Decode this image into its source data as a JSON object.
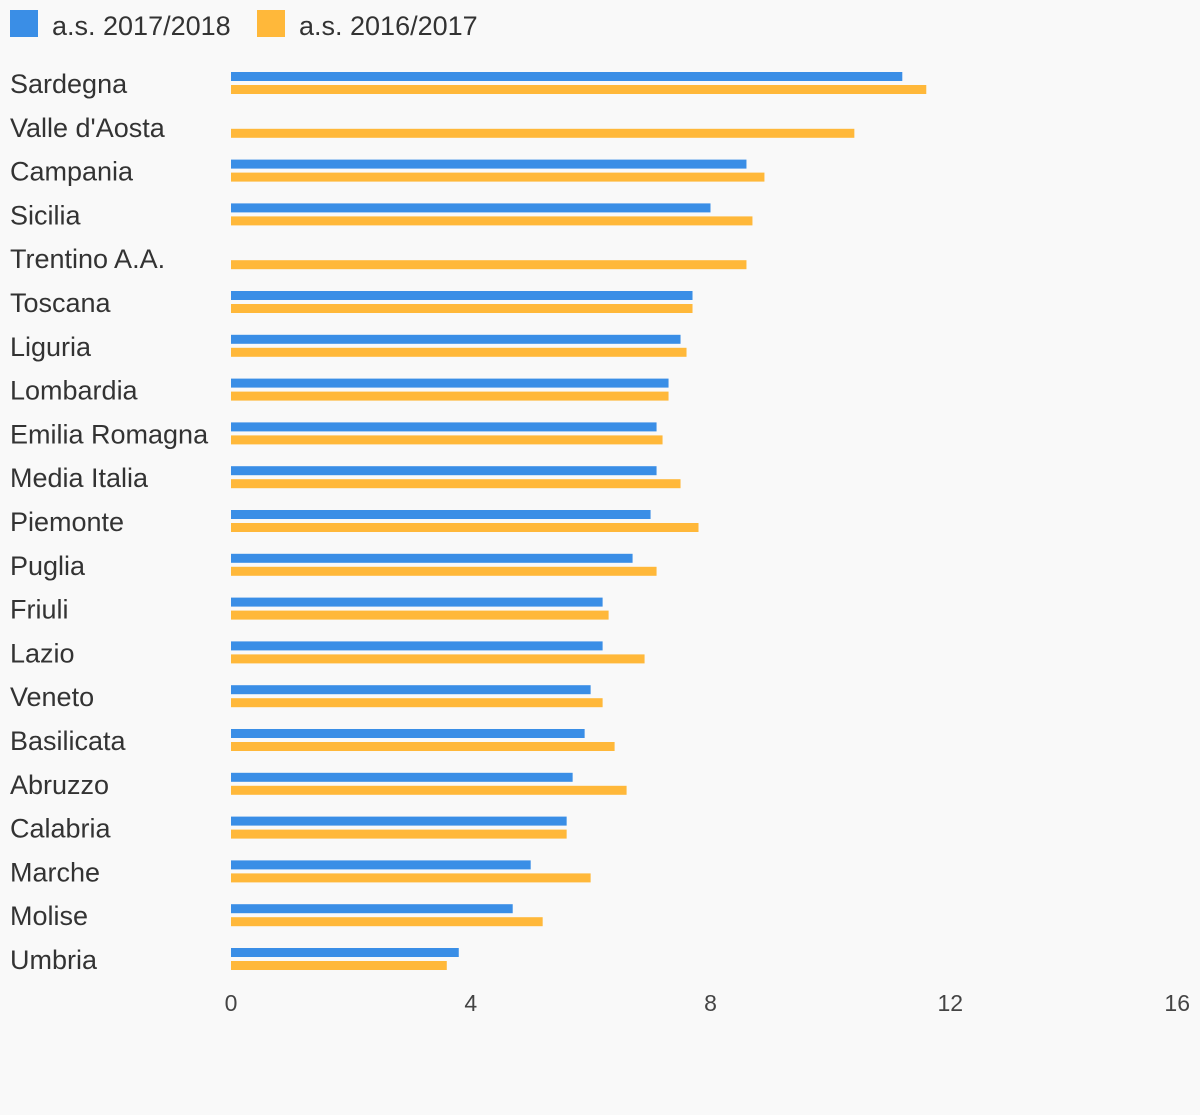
{
  "chart_data": {
    "type": "bar",
    "orientation": "horizontal",
    "categories": [
      "Sardegna",
      "Valle d'Aosta",
      "Campania",
      "Sicilia",
      "Trentino A.A.",
      "Toscana",
      "Liguria",
      "Lombardia",
      "Emilia Romagna",
      "Media Italia",
      "Piemonte",
      "Puglia",
      "Friuli",
      "Lazio",
      "Veneto",
      "Basilicata",
      "Abruzzo",
      "Calabria",
      "Marche",
      "Molise",
      "Umbria"
    ],
    "series": [
      {
        "name": "a.s. 2017/2018",
        "color": "#3a8ee6",
        "values": [
          11.2,
          null,
          8.6,
          8.0,
          null,
          7.7,
          7.5,
          7.3,
          7.1,
          7.1,
          7.0,
          6.7,
          6.2,
          6.2,
          6.0,
          5.9,
          5.7,
          5.6,
          5.0,
          4.7,
          3.8
        ]
      },
      {
        "name": "a.s. 2016/2017",
        "color": "#ffb83a",
        "values": [
          11.6,
          10.4,
          8.9,
          8.7,
          8.6,
          7.7,
          7.6,
          7.3,
          7.2,
          7.5,
          7.8,
          7.1,
          6.3,
          6.9,
          6.2,
          6.4,
          6.6,
          5.6,
          6.0,
          5.2,
          3.6
        ]
      }
    ],
    "xlim": [
      0,
      16
    ],
    "xticks": [
      0,
      4,
      8,
      12,
      16
    ],
    "grid": false,
    "legend_position": "top-left"
  }
}
